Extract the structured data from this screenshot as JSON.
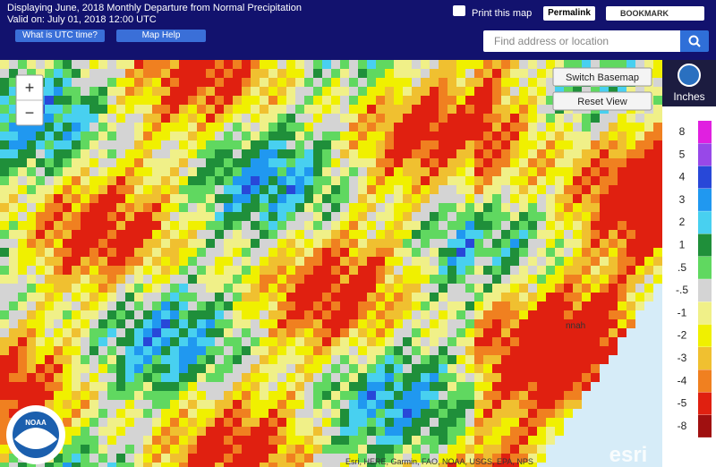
{
  "header": {
    "title": "Displaying June, 2018 Monthly Departure from Normal Precipitation",
    "valid": "Valid on: July 01, 2018 12:00 UTC",
    "utc_button": "What is UTC time?",
    "help_button": "Map Help",
    "print": "Print this map",
    "permalink": "Permalink",
    "bookmark": "BOOKMARK",
    "search_placeholder": "Find address or location"
  },
  "map": {
    "zoom_in": "+",
    "zoom_out": "−",
    "switch_basemap": "Switch Basemap",
    "reset_view": "Reset View",
    "place_label": "nnah",
    "attribution": "Esri, HERE, Garmin, FAO, NOAA, USGS, EPA, NPS",
    "esri": "esri",
    "noaa": "NOAA"
  },
  "legend": {
    "title": "Inches",
    "items": [
      {
        "label": "8",
        "color": "#e020e0"
      },
      {
        "label": "5",
        "color": "#9848e8"
      },
      {
        "label": "4",
        "color": "#2848d8"
      },
      {
        "label": "3",
        "color": "#2098f0"
      },
      {
        "label": "2",
        "color": "#48d0f0"
      },
      {
        "label": "1",
        "color": "#1f8f3a"
      },
      {
        "label": ".5",
        "color": "#60d860"
      },
      {
        "label": "-.5",
        "color": "#d4d4d4"
      },
      {
        "label": "-1",
        "color": "#f0f088"
      },
      {
        "label": "-2",
        "color": "#f0f000"
      },
      {
        "label": "-3",
        "color": "#f0c030"
      },
      {
        "label": "-4",
        "color": "#f08020"
      },
      {
        "label": "-5",
        "color": "#e02010"
      },
      {
        "label": "-8",
        "color": "#a01010"
      }
    ]
  }
}
